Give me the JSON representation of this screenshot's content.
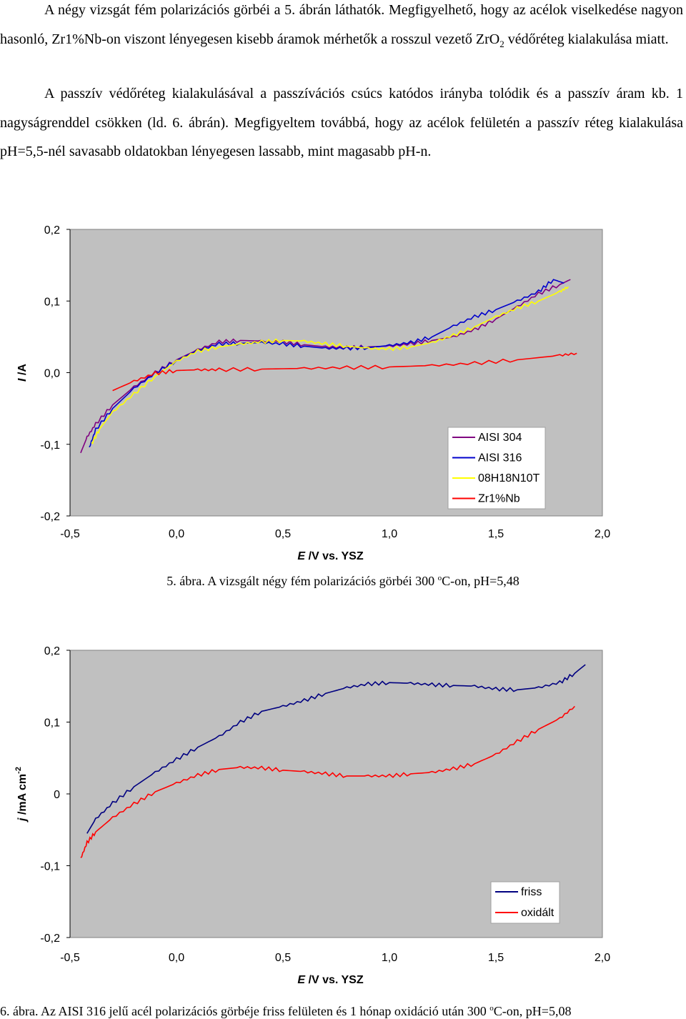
{
  "paragraphs": {
    "p1_a": "A négy vizsgát fém polarizációs görbéi a 5. ábrán láthatók. Megfigyelhető, hogy az acélok viselkedése nagyon hasonló, Zr1%Nb-on viszont lényegesen kisebb áramok mérhetők a rosszul vezető ZrO",
    "p1_sub": "2",
    "p1_b": " védőréteg kialakulása miatt.",
    "p2": "A passzív védőréteg kialakulásával a passzívációs csúcs katódos irányba tolódik és a passzív áram kb. 1 nagyságrenddel csökken (ld. 6. ábrán). Megfigyeltem továbbá, hogy az acélok felületén a passzív réteg kialakulása pH=5,5-nél savasabb oldatokban lényegesen lassabb, mint magasabb pH-n."
  },
  "captions": {
    "fig5_a": "5. ábra. A vizsgált négy fém polarizációs görbéi 300 ",
    "fig5_sup": "o",
    "fig5_b": "C-on, pH=5,48",
    "fig6_a": "6. ábra. Az AISI 316 jelű acél polarizációs görbéje friss felületen és 1 hónap oxidáció után 300 ",
    "fig6_sup": "o",
    "fig6_b": "C-on, pH=5,08"
  },
  "chart_data": [
    {
      "type": "line",
      "xlabel_italic": "E",
      "xlabel_rest": " /V vs. YSZ",
      "ylabel_italic": "I",
      "ylabel_rest": " /A",
      "xlim": [
        -0.5,
        2.0
      ],
      "ylim": [
        -0.2,
        0.2
      ],
      "x_ticks": [
        "-0,5",
        "0,0",
        "0,5",
        "1,0",
        "1,5",
        "2,0"
      ],
      "y_ticks": [
        "0,2",
        "0,1",
        "0,0",
        "-0,1",
        "-0,2"
      ],
      "grid": false,
      "legend_position": "bottom-right",
      "colors": {
        "plot_bg": "#c0c0c0"
      },
      "series": [
        {
          "name": "AISI 304",
          "color": "#800080",
          "points": [
            [
              -0.45,
              -0.112
            ],
            [
              -0.42,
              -0.09
            ],
            [
              -0.38,
              -0.072
            ],
            [
              -0.3,
              -0.045
            ],
            [
              -0.2,
              -0.02
            ],
            [
              -0.1,
              0.0
            ],
            [
              0.0,
              0.018
            ],
            [
              0.1,
              0.032
            ],
            [
              0.2,
              0.043
            ],
            [
              0.3,
              0.045
            ],
            [
              0.4,
              0.044
            ],
            [
              0.5,
              0.043
            ],
            [
              0.6,
              0.039
            ],
            [
              0.7,
              0.036
            ],
            [
              0.8,
              0.035
            ],
            [
              0.9,
              0.036
            ],
            [
              1.0,
              0.037
            ],
            [
              1.1,
              0.04
            ],
            [
              1.2,
              0.045
            ],
            [
              1.3,
              0.05
            ],
            [
              1.4,
              0.06
            ],
            [
              1.5,
              0.075
            ],
            [
              1.6,
              0.092
            ],
            [
              1.7,
              0.11
            ],
            [
              1.8,
              0.123
            ],
            [
              1.85,
              0.13
            ]
          ]
        },
        {
          "name": "AISI 316",
          "color": "#0000cc",
          "points": [
            [
              -0.41,
              -0.105
            ],
            [
              -0.38,
              -0.08
            ],
            [
              -0.3,
              -0.05
            ],
            [
              -0.2,
              -0.022
            ],
            [
              -0.1,
              -0.001
            ],
            [
              0.0,
              0.017
            ],
            [
              0.1,
              0.031
            ],
            [
              0.2,
              0.04
            ],
            [
              0.3,
              0.041
            ],
            [
              0.4,
              0.042
            ],
            [
              0.5,
              0.04
            ],
            [
              0.6,
              0.037
            ],
            [
              0.7,
              0.034
            ],
            [
              0.8,
              0.034
            ],
            [
              0.9,
              0.035
            ],
            [
              1.0,
              0.038
            ],
            [
              1.1,
              0.042
            ],
            [
              1.2,
              0.05
            ],
            [
              1.3,
              0.065
            ],
            [
              1.4,
              0.078
            ],
            [
              1.5,
              0.088
            ],
            [
              1.6,
              0.1
            ],
            [
              1.7,
              0.113
            ],
            [
              1.77,
              0.13
            ],
            [
              1.82,
              0.125
            ]
          ]
        },
        {
          "name": "08H18N10T",
          "color": "#ffff00",
          "points": [
            [
              -0.4,
              -0.1
            ],
            [
              -0.36,
              -0.078
            ],
            [
              -0.3,
              -0.055
            ],
            [
              -0.2,
              -0.03
            ],
            [
              -0.1,
              -0.005
            ],
            [
              0.0,
              0.016
            ],
            [
              0.1,
              0.03
            ],
            [
              0.2,
              0.036
            ],
            [
              0.3,
              0.04
            ],
            [
              0.4,
              0.043
            ],
            [
              0.5,
              0.045
            ],
            [
              0.6,
              0.044
            ],
            [
              0.7,
              0.04
            ],
            [
              0.8,
              0.037
            ],
            [
              0.9,
              0.034
            ],
            [
              1.0,
              0.033
            ],
            [
              1.1,
              0.036
            ],
            [
              1.2,
              0.042
            ],
            [
              1.3,
              0.052
            ],
            [
              1.4,
              0.064
            ],
            [
              1.5,
              0.078
            ],
            [
              1.6,
              0.09
            ],
            [
              1.7,
              0.1
            ],
            [
              1.8,
              0.113
            ],
            [
              1.84,
              0.12
            ]
          ]
        },
        {
          "name": "Zr1%Nb",
          "color": "#ff0000",
          "points": [
            [
              -0.3,
              -0.025
            ],
            [
              -0.2,
              -0.012
            ],
            [
              -0.1,
              -0.001
            ],
            [
              0.0,
              0.003
            ],
            [
              0.1,
              0.004
            ],
            [
              0.2,
              0.004
            ],
            [
              0.4,
              0.005
            ],
            [
              0.6,
              0.006
            ],
            [
              0.8,
              0.007
            ],
            [
              1.0,
              0.008
            ],
            [
              1.2,
              0.01
            ],
            [
              1.4,
              0.013
            ],
            [
              1.6,
              0.018
            ],
            [
              1.8,
              0.024
            ],
            [
              1.88,
              0.027
            ]
          ]
        }
      ]
    },
    {
      "type": "line",
      "xlabel_italic": "E",
      "xlabel_rest": " /V vs. YSZ",
      "ylabel_italic": "j",
      "ylabel_rest": " /mA cm",
      "ylabel_sup": "-2",
      "xlim": [
        -0.5,
        2.0
      ],
      "ylim": [
        -0.2,
        0.2
      ],
      "x_ticks": [
        "-0,5",
        "0,0",
        "0,5",
        "1,0",
        "1,5",
        "2,0"
      ],
      "y_ticks": [
        "0,2",
        "0,1",
        "0",
        "-0,1",
        "-0,2"
      ],
      "grid": false,
      "legend_position": "bottom-right",
      "colors": {
        "plot_bg": "#c0c0c0"
      },
      "series": [
        {
          "name": "friss",
          "color": "#000080",
          "points": [
            [
              -0.42,
              -0.055
            ],
            [
              -0.38,
              -0.035
            ],
            [
              -0.3,
              -0.013
            ],
            [
              -0.2,
              0.01
            ],
            [
              -0.1,
              0.03
            ],
            [
              0.0,
              0.048
            ],
            [
              0.1,
              0.065
            ],
            [
              0.2,
              0.08
            ],
            [
              0.3,
              0.1
            ],
            [
              0.4,
              0.115
            ],
            [
              0.5,
              0.122
            ],
            [
              0.6,
              0.13
            ],
            [
              0.7,
              0.14
            ],
            [
              0.8,
              0.148
            ],
            [
              0.9,
              0.153
            ],
            [
              1.0,
              0.155
            ],
            [
              1.1,
              0.154
            ],
            [
              1.2,
              0.152
            ],
            [
              1.3,
              0.151
            ],
            [
              1.4,
              0.15
            ],
            [
              1.5,
              0.146
            ],
            [
              1.6,
              0.145
            ],
            [
              1.7,
              0.148
            ],
            [
              1.8,
              0.155
            ],
            [
              1.87,
              0.168
            ],
            [
              1.92,
              0.18
            ]
          ]
        },
        {
          "name": "oxidált",
          "color": "#ff0000",
          "points": [
            [
              -0.45,
              -0.09
            ],
            [
              -0.42,
              -0.068
            ],
            [
              -0.38,
              -0.053
            ],
            [
              -0.3,
              -0.033
            ],
            [
              -0.2,
              -0.014
            ],
            [
              -0.1,
              0.003
            ],
            [
              0.0,
              0.015
            ],
            [
              0.1,
              0.026
            ],
            [
              0.2,
              0.034
            ],
            [
              0.3,
              0.037
            ],
            [
              0.4,
              0.036
            ],
            [
              0.5,
              0.033
            ],
            [
              0.6,
              0.031
            ],
            [
              0.7,
              0.028
            ],
            [
              0.8,
              0.025
            ],
            [
              0.9,
              0.025
            ],
            [
              1.0,
              0.025
            ],
            [
              1.1,
              0.028
            ],
            [
              1.2,
              0.03
            ],
            [
              1.3,
              0.035
            ],
            [
              1.4,
              0.042
            ],
            [
              1.5,
              0.055
            ],
            [
              1.6,
              0.073
            ],
            [
              1.7,
              0.09
            ],
            [
              1.8,
              0.105
            ],
            [
              1.87,
              0.122
            ]
          ]
        }
      ]
    }
  ]
}
